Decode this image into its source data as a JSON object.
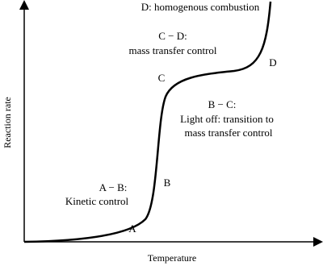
{
  "title_annotation": "D: homogenous combustion",
  "axes": {
    "y_label": "Reaction rate",
    "x_label": "Temperature"
  },
  "points": [
    "A",
    "B",
    "C",
    "D"
  ],
  "regions": [
    {
      "label": "A − B:",
      "description": [
        "Kinetic control"
      ]
    },
    {
      "label": "B − C:",
      "description": [
        "Light off: transition to",
        "mass transfer control"
      ]
    },
    {
      "label": "C − D:",
      "description": [
        "mass transfer control"
      ]
    }
  ]
}
